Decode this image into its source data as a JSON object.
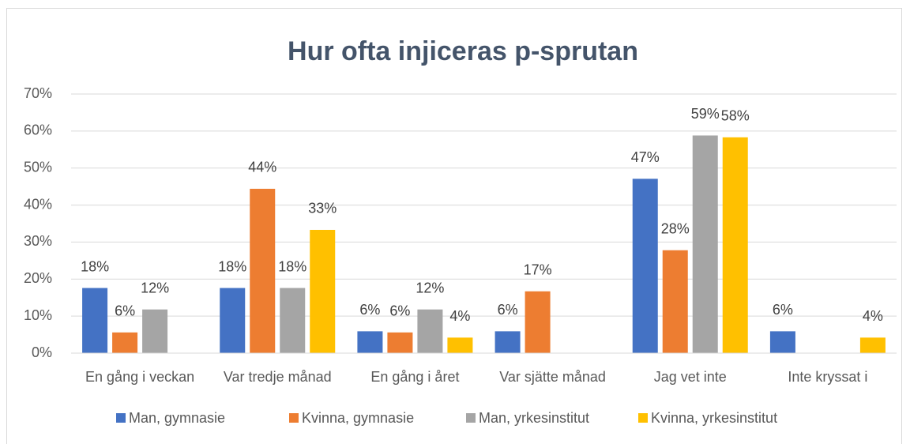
{
  "chart_data": {
    "type": "bar",
    "title": "Hur ofta injiceras p-sprutan",
    "categories": [
      "En gång i veckan",
      "Var tredje månad",
      "En gång i året",
      "Var sjätte månad",
      "Jag vet inte",
      "Inte kryssat i"
    ],
    "series": [
      {
        "name": "Man, gymnasie",
        "color": "#4472c4",
        "values": [
          17.6,
          17.6,
          5.9,
          5.9,
          47.1,
          5.9
        ],
        "value_labels": [
          "18%",
          "18%",
          "6%",
          "6%",
          "47%",
          "6%"
        ]
      },
      {
        "name": "Kvinna, gymnasie",
        "color": "#ed7d31",
        "values": [
          5.6,
          44.4,
          5.6,
          16.7,
          27.8,
          null
        ],
        "value_labels": [
          "6%",
          "44%",
          "6%",
          "17%",
          "28%",
          null
        ]
      },
      {
        "name": "Man, yrkesinstitut",
        "color": "#a5a5a5",
        "values": [
          11.8,
          17.6,
          11.8,
          null,
          58.8,
          null
        ],
        "value_labels": [
          "12%",
          "18%",
          "12%",
          null,
          "59%",
          null
        ]
      },
      {
        "name": "Kvinna, yrkesinstitut",
        "color": "#ffc000",
        "values": [
          null,
          33.3,
          4.2,
          null,
          58.3,
          4.2
        ],
        "value_labels": [
          null,
          "33%",
          "4%",
          null,
          "58%",
          "4%"
        ]
      }
    ],
    "ylim": [
      0,
      70
    ],
    "yticks": [
      {
        "value": 0,
        "label": "0%"
      },
      {
        "value": 10,
        "label": "10%"
      },
      {
        "value": 20,
        "label": "20%"
      },
      {
        "value": 30,
        "label": "30%"
      },
      {
        "value": 40,
        "label": "40%"
      },
      {
        "value": 50,
        "label": "50%"
      },
      {
        "value": 60,
        "label": "60%"
      },
      {
        "value": 70,
        "label": "70%"
      }
    ],
    "grid": true,
    "legend": "bottom"
  }
}
